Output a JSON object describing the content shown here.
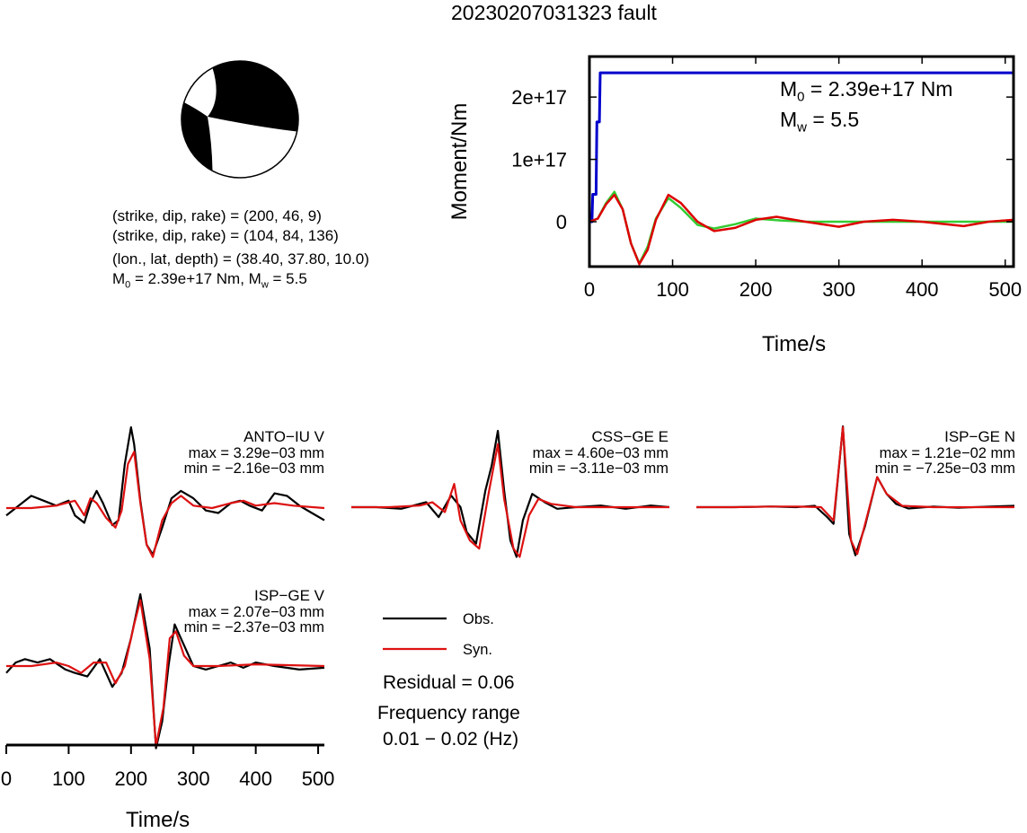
{
  "title": "20230207031323 fault",
  "beachball": {
    "strike1": 200,
    "dip1": 46,
    "rake1": 9,
    "strike2": 104,
    "dip2": 84,
    "rake2": 136
  },
  "info": {
    "line1": "(strike, dip, rake) = (200, 46, 9)",
    "line2": "(strike, dip, rake) = (104, 84, 136)",
    "line3": "(lon., lat, depth) = (38.40, 37.80, 10.0)",
    "m0_label": "M",
    "m0_sub": "0",
    "m0_value": " = 2.39e+17 Nm, M",
    "mw_sub": "w",
    "mw_value": " = 5.5"
  },
  "moment_panel": {
    "m0_text": "M",
    "m0_sub": "0",
    "m0_rest": " = 2.39e+17 Nm",
    "mw_text": "M",
    "mw_sub": "w",
    "mw_rest": " = 5.5"
  },
  "legend": {
    "obs": "Obs.",
    "syn": "Syn."
  },
  "residual": "Residual = 0.06",
  "freq_label": "Frequency range",
  "freq_value": "0.01 − 0.02 (Hz)",
  "chart_data": [
    {
      "type": "line",
      "xlabel": "Time/s",
      "ylabel": "Moment/Nm",
      "xlim": [
        0,
        510
      ],
      "ylim": [
        -7.2e+16,
        2.65e+17
      ],
      "xticks": [
        0,
        100,
        200,
        300,
        400,
        500
      ],
      "xtick_labels": [
        "0",
        "100",
        "200",
        "300",
        "400",
        "500"
      ],
      "yticks": [
        0,
        1e+17,
        2e+17
      ],
      "ytick_labels": [
        "0",
        "1e+17",
        "2e+17"
      ],
      "series": [
        {
          "color": "#0000cc",
          "x": [
            0,
            3,
            4,
            8,
            9,
            12,
            13,
            510
          ],
          "y": [
            0,
            0,
            4.4e+16,
            4.4e+16,
            1.6e+17,
            1.6e+17,
            2.39e+17,
            2.39e+17
          ]
        },
        {
          "color": "#33cc33",
          "x": [
            0,
            10,
            20,
            30,
            40,
            50,
            60,
            70,
            80,
            95,
            110,
            130,
            150,
            175,
            200,
            230,
            260,
            300,
            350,
            400,
            450,
            510
          ],
          "y": [
            0,
            5000000000000000.0,
            3e+16,
            4.8e+16,
            2e+16,
            -3.5e+16,
            -6.7e+16,
            -4e+16,
            5000000000000000.0,
            3.8e+16,
            2.2e+16,
            -5000000000000000.0,
            -1.1e+16,
            -4000000000000000.0,
            5000000000000000.0,
            2000000000000000.0,
            0,
            0,
            0,
            0,
            0,
            0
          ]
        },
        {
          "color": "#dd0000",
          "x": [
            0,
            10,
            20,
            30,
            40,
            50,
            60,
            70,
            80,
            95,
            110,
            130,
            150,
            175,
            200,
            225,
            260,
            300,
            330,
            365,
            400,
            450,
            480,
            510
          ],
          "y": [
            0,
            5000000000000000.0,
            2.8e+16,
            4.3e+16,
            2e+16,
            -3.5e+16,
            -6.8e+16,
            -4.5e+16,
            3000000000000000.0,
            4.3e+16,
            3e+16,
            0,
            -1.5e+16,
            -1e+16,
            3000000000000000.0,
            8000000000000000.0,
            0,
            -8000000000000000.0,
            0,
            3000000000000000.0,
            0,
            -7000000000000000.0,
            0,
            3000000000000000.0
          ]
        }
      ]
    },
    {
      "type": "line",
      "xlabel": "Time/s",
      "xlim": [
        0,
        510
      ],
      "xticks": [
        0,
        100,
        200,
        300,
        400,
        500
      ],
      "xtick_labels": [
        "0",
        "100",
        "200",
        "300",
        "400",
        "500"
      ],
      "waveforms": [
        {
          "station": "ANTO−IU V",
          "max": "max = 3.29e−03 mm",
          "min": "min = −2.16e−03 mm",
          "obs": [
            [
              0,
              -0.3
            ],
            [
              20,
              0.1
            ],
            [
              40,
              0.5
            ],
            [
              60,
              0.3
            ],
            [
              80,
              0.1
            ],
            [
              100,
              0.3
            ],
            [
              110,
              -0.3
            ],
            [
              125,
              -0.6
            ],
            [
              135,
              0.2
            ],
            [
              145,
              0.7
            ],
            [
              155,
              0.2
            ],
            [
              170,
              -0.7
            ],
            [
              180,
              -0.5
            ],
            [
              190,
              1.8
            ],
            [
              200,
              3.3
            ],
            [
              205,
              2.6
            ],
            [
              215,
              0.3
            ],
            [
              225,
              -1.5
            ],
            [
              235,
              -1.9
            ],
            [
              250,
              -0.8
            ],
            [
              265,
              0.4
            ],
            [
              280,
              0.7
            ],
            [
              300,
              0.4
            ],
            [
              320,
              -0.1
            ],
            [
              340,
              -0.2
            ],
            [
              360,
              0.2
            ],
            [
              375,
              0.3
            ],
            [
              390,
              0.1
            ],
            [
              410,
              -0.1
            ],
            [
              430,
              0.6
            ],
            [
              450,
              0.5
            ],
            [
              470,
              0.1
            ],
            [
              490,
              -0.2
            ],
            [
              510,
              -0.5
            ]
          ],
          "syn": [
            [
              0,
              0
            ],
            [
              40,
              0
            ],
            [
              80,
              0.1
            ],
            [
              110,
              0.3
            ],
            [
              125,
              -0.3
            ],
            [
              135,
              0.4
            ],
            [
              145,
              0.2
            ],
            [
              160,
              -0.4
            ],
            [
              175,
              -0.8
            ],
            [
              185,
              -0.1
            ],
            [
              195,
              1.8
            ],
            [
              205,
              2.3
            ],
            [
              215,
              0.2
            ],
            [
              225,
              -1.5
            ],
            [
              235,
              -2
            ],
            [
              250,
              -0.5
            ],
            [
              265,
              0.2
            ],
            [
              280,
              0.5
            ],
            [
              300,
              0.1
            ],
            [
              330,
              0
            ],
            [
              360,
              0.2
            ],
            [
              380,
              0.3
            ],
            [
              400,
              0.1
            ],
            [
              430,
              0.2
            ],
            [
              460,
              0.1
            ],
            [
              510,
              0
            ]
          ]
        },
        {
          "station": "CSS−GE E",
          "max": "max = 4.60e−03 mm",
          "min": "min = −3.11e−03 mm",
          "obs": [
            [
              0,
              0
            ],
            [
              40,
              0
            ],
            [
              80,
              -0.1
            ],
            [
              120,
              0.3
            ],
            [
              140,
              -0.6
            ],
            [
              160,
              0.7
            ],
            [
              175,
              0
            ],
            [
              185,
              -1.5
            ],
            [
              200,
              -2.2
            ],
            [
              215,
              1
            ],
            [
              225,
              2.5
            ],
            [
              235,
              4.6
            ],
            [
              245,
              1
            ],
            [
              255,
              -2
            ],
            [
              265,
              -3
            ],
            [
              275,
              -0.8
            ],
            [
              290,
              0.8
            ],
            [
              310,
              0.3
            ],
            [
              330,
              -0.1
            ],
            [
              360,
              0
            ],
            [
              400,
              0.1
            ],
            [
              440,
              -0.1
            ],
            [
              480,
              0.1
            ],
            [
              510,
              0
            ]
          ],
          "syn": [
            [
              0,
              0
            ],
            [
              60,
              0
            ],
            [
              110,
              0.1
            ],
            [
              130,
              0.3
            ],
            [
              150,
              -0.3
            ],
            [
              165,
              1.4
            ],
            [
              175,
              -0.8
            ],
            [
              190,
              -2
            ],
            [
              205,
              -2.5
            ],
            [
              220,
              0.8
            ],
            [
              235,
              3.8
            ],
            [
              245,
              0.5
            ],
            [
              260,
              -2.5
            ],
            [
              270,
              -3
            ],
            [
              285,
              -0.5
            ],
            [
              300,
              0.5
            ],
            [
              320,
              0.2
            ],
            [
              360,
              0
            ],
            [
              510,
              0
            ]
          ]
        },
        {
          "station": "ISP−GE N",
          "max": "max = 1.21e−02 mm",
          "min": "min = −7.25e−03 mm",
          "obs": [
            [
              0,
              0
            ],
            [
              60,
              0
            ],
            [
              120,
              0.1
            ],
            [
              160,
              0
            ],
            [
              190,
              0.2
            ],
            [
              210,
              -1.5
            ],
            [
              220,
              -2.5
            ],
            [
              235,
              12.1
            ],
            [
              245,
              -4
            ],
            [
              255,
              -7.2
            ],
            [
              270,
              -3
            ],
            [
              290,
              4.5
            ],
            [
              305,
              2
            ],
            [
              320,
              0.5
            ],
            [
              340,
              -0.2
            ],
            [
              380,
              0.1
            ],
            [
              420,
              -0.1
            ],
            [
              470,
              0.1
            ],
            [
              510,
              0.2
            ]
          ],
          "syn": [
            [
              0,
              0
            ],
            [
              60,
              0
            ],
            [
              120,
              0.1
            ],
            [
              160,
              0.1
            ],
            [
              200,
              0
            ],
            [
              220,
              -2
            ],
            [
              235,
              12
            ],
            [
              248,
              -5
            ],
            [
              258,
              -7
            ],
            [
              272,
              -2
            ],
            [
              290,
              4.5
            ],
            [
              305,
              2
            ],
            [
              330,
              0.2
            ],
            [
              380,
              0
            ],
            [
              510,
              0
            ]
          ]
        },
        {
          "station": "ISP−GE V",
          "max": "max = 2.07e−03 mm",
          "min": "min = −2.37e−03 mm",
          "obs": [
            [
              0,
              -0.2
            ],
            [
              15,
              0.1
            ],
            [
              30,
              0.2
            ],
            [
              50,
              0.1
            ],
            [
              70,
              0.2
            ],
            [
              95,
              -0.1
            ],
            [
              110,
              -0.2
            ],
            [
              130,
              -0.3
            ],
            [
              150,
              0.2
            ],
            [
              170,
              -0.6
            ],
            [
              185,
              -0.2
            ],
            [
              200,
              0.8
            ],
            [
              215,
              2.07
            ],
            [
              230,
              0.5
            ],
            [
              240,
              -2.37
            ],
            [
              250,
              -1.6
            ],
            [
              260,
              0
            ],
            [
              270,
              1.2
            ],
            [
              285,
              0.6
            ],
            [
              300,
              0
            ],
            [
              320,
              -0.1
            ],
            [
              340,
              0
            ],
            [
              360,
              0.1
            ],
            [
              380,
              -0.05
            ],
            [
              400,
              0.1
            ],
            [
              430,
              0
            ],
            [
              470,
              -0.1
            ],
            [
              510,
              -0.05
            ]
          ],
          "syn": [
            [
              0,
              0
            ],
            [
              40,
              0
            ],
            [
              80,
              0.1
            ],
            [
              100,
              0
            ],
            [
              120,
              -0.2
            ],
            [
              140,
              0.1
            ],
            [
              160,
              0.1
            ],
            [
              175,
              -0.5
            ],
            [
              190,
              0
            ],
            [
              205,
              1.2
            ],
            [
              215,
              1.9
            ],
            [
              230,
              0.2
            ],
            [
              240,
              -2.3
            ],
            [
              252,
              -1.2
            ],
            [
              262,
              0.8
            ],
            [
              272,
              1
            ],
            [
              285,
              0.3
            ],
            [
              300,
              0
            ],
            [
              340,
              0
            ],
            [
              400,
              0.05
            ],
            [
              510,
              0
            ]
          ]
        }
      ]
    }
  ]
}
